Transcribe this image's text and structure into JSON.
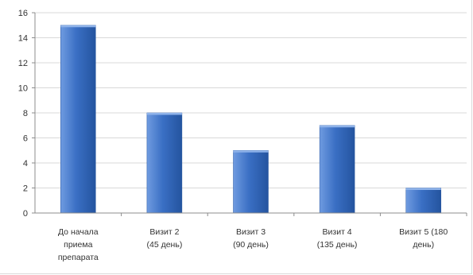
{
  "chart_data": {
    "type": "bar",
    "categories": [
      [
        "До начала",
        "приема",
        "препарата"
      ],
      [
        "Визит 2",
        "(45 день)"
      ],
      [
        "Визит 3",
        "(90 день)"
      ],
      [
        "Визит 4",
        "(135 день)"
      ],
      [
        "Визит 5 (180",
        "день)"
      ]
    ],
    "values": [
      15,
      8,
      5,
      7,
      2
    ],
    "ylim": [
      0,
      16
    ],
    "yticks": [
      0,
      2,
      4,
      6,
      8,
      10,
      12,
      14,
      16
    ],
    "title": "",
    "xlabel": "",
    "ylabel": "",
    "grid": true,
    "legend": "none",
    "colors": {
      "bar_light": "#6f9be0",
      "bar_mid": "#3a6fc4",
      "bar_dark": "#24549f",
      "bar_top": "#8fb3ea",
      "grid": "#d9d9d9",
      "axis": "#8c8c8c"
    }
  }
}
